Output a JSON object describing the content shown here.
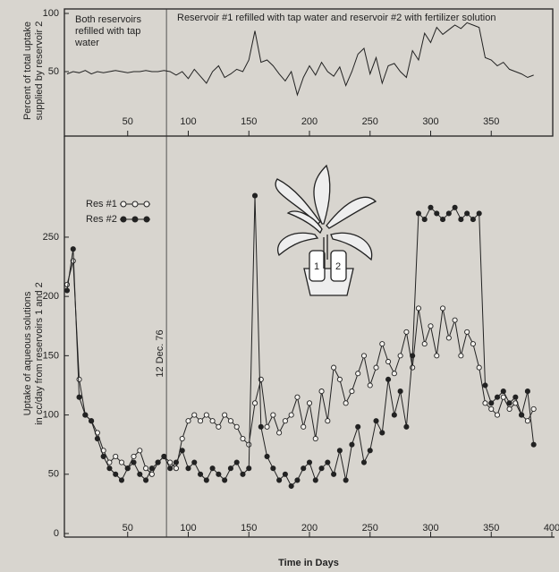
{
  "chart_data": [
    {
      "type": "line",
      "ylabel": [
        "Percent of total uptake",
        "supplied by reservoir 2"
      ],
      "annotations": [
        "Both reservoirs refilled with tap water",
        "Reservoir #1 refilled with tap water and reservoir #2 with fertilizer solution"
      ],
      "xlim": [
        0,
        400
      ],
      "ylim": [
        0,
        100
      ],
      "xticks": [
        50,
        100,
        150,
        200,
        250,
        300,
        350
      ],
      "yticks": [
        50,
        100
      ],
      "vline_x": 82,
      "color": "#222222",
      "x": [
        0,
        5,
        10,
        15,
        20,
        25,
        30,
        35,
        40,
        45,
        50,
        55,
        60,
        65,
        70,
        75,
        80,
        85,
        90,
        95,
        100,
        105,
        110,
        115,
        120,
        125,
        130,
        135,
        140,
        145,
        150,
        155,
        160,
        165,
        170,
        175,
        180,
        185,
        190,
        195,
        200,
        205,
        210,
        215,
        220,
        225,
        230,
        235,
        240,
        245,
        250,
        255,
        260,
        265,
        270,
        275,
        280,
        285,
        290,
        295,
        300,
        305,
        310,
        315,
        320,
        325,
        330,
        335,
        340,
        345,
        350,
        355,
        360,
        365,
        370,
        375,
        380,
        385
      ],
      "values": [
        48,
        50,
        49,
        51,
        48,
        50,
        49,
        50,
        51,
        50,
        49,
        50,
        50,
        51,
        50,
        50,
        51,
        50,
        47,
        50,
        44,
        52,
        46,
        40,
        50,
        55,
        45,
        48,
        52,
        50,
        60,
        85,
        58,
        60,
        55,
        48,
        42,
        50,
        30,
        45,
        55,
        47,
        58,
        50,
        46,
        54,
        38,
        50,
        65,
        70,
        48,
        62,
        40,
        55,
        57,
        50,
        45,
        68,
        60,
        83,
        75,
        88,
        82,
        86,
        90,
        87,
        92,
        90,
        88,
        62,
        60,
        55,
        58,
        52,
        50,
        48,
        45,
        47
      ]
    },
    {
      "type": "line",
      "xlabel": "Time in Days",
      "ylabel": [
        "Uptake of aqueous solutions",
        "in cc/day from reservoirs 1 and 2"
      ],
      "annotation": "12 Dec. 76",
      "illustration_labels": [
        "1",
        "2"
      ],
      "xlim": [
        0,
        400
      ],
      "ylim": [
        0,
        330
      ],
      "xticks": [
        50,
        100,
        150,
        200,
        250,
        300,
        350,
        400
      ],
      "yticks": [
        0,
        50,
        100,
        150,
        200,
        250
      ],
      "vline_x": 82,
      "x": [
        0,
        5,
        10,
        15,
        20,
        25,
        30,
        35,
        40,
        45,
        50,
        55,
        60,
        65,
        70,
        75,
        80,
        85,
        90,
        95,
        100,
        105,
        110,
        115,
        120,
        125,
        130,
        135,
        140,
        145,
        150,
        155,
        160,
        165,
        170,
        175,
        180,
        185,
        190,
        195,
        200,
        205,
        210,
        215,
        220,
        225,
        230,
        235,
        240,
        245,
        250,
        255,
        260,
        265,
        270,
        275,
        280,
        285,
        290,
        295,
        300,
        305,
        310,
        315,
        320,
        325,
        330,
        335,
        340,
        345,
        350,
        355,
        360,
        365,
        370,
        375,
        380,
        385
      ],
      "series": [
        {
          "name": "Res #1",
          "color": "#222222",
          "marker": "open",
          "values": [
            210,
            230,
            130,
            100,
            95,
            85,
            70,
            60,
            65,
            60,
            55,
            65,
            70,
            55,
            50,
            60,
            65,
            60,
            55,
            80,
            95,
            100,
            95,
            100,
            95,
            90,
            100,
            95,
            90,
            80,
            75,
            110,
            130,
            90,
            100,
            85,
            95,
            100,
            115,
            90,
            110,
            80,
            120,
            95,
            140,
            130,
            110,
            120,
            135,
            150,
            125,
            140,
            160,
            145,
            135,
            150,
            170,
            140,
            190,
            160,
            175,
            150,
            190,
            165,
            180,
            150,
            170,
            160,
            140,
            110,
            105,
            100,
            115,
            105,
            110,
            100,
            95,
            105
          ]
        },
        {
          "name": "Res #2",
          "color": "#222222",
          "marker": "filled",
          "values": [
            205,
            240,
            115,
            100,
            95,
            80,
            65,
            55,
            50,
            45,
            55,
            60,
            50,
            45,
            55,
            60,
            65,
            55,
            60,
            70,
            55,
            60,
            50,
            45,
            55,
            50,
            45,
            55,
            60,
            50,
            55,
            285,
            90,
            65,
            55,
            45,
            50,
            40,
            45,
            55,
            60,
            45,
            55,
            60,
            50,
            70,
            45,
            75,
            90,
            60,
            70,
            95,
            85,
            130,
            100,
            120,
            90,
            150,
            270,
            265,
            275,
            270,
            265,
            270,
            275,
            265,
            270,
            265,
            270,
            125,
            110,
            115,
            120,
            110,
            115,
            100,
            120,
            75
          ]
        }
      ]
    }
  ]
}
